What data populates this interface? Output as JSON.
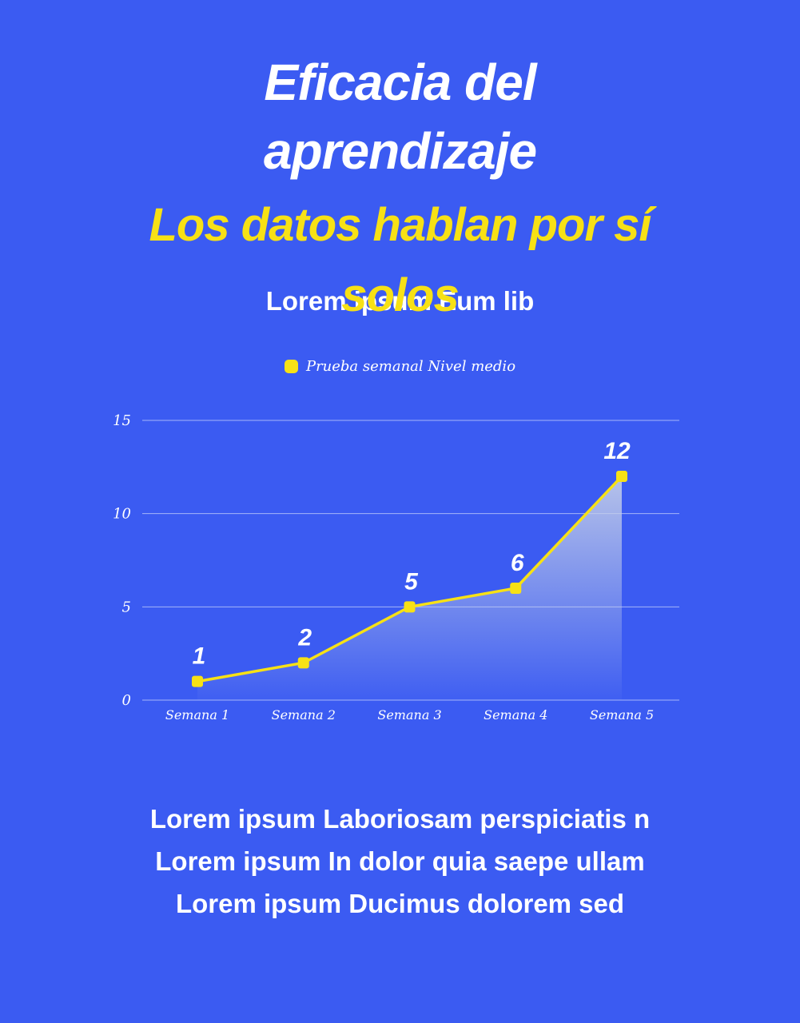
{
  "page": {
    "background_color": "#3B5BF2",
    "accent_yellow": "#F7E115",
    "text_color": "#FFFFFF"
  },
  "header": {
    "title": "Eficacia del aprendizaje",
    "subtitle": "Los datos hablan por sí solos",
    "tagline": "Lorem ipsum Eum lib"
  },
  "legend": {
    "label": "Prueba semanal Nivel medio",
    "swatch_color": "#F7E115"
  },
  "chart_data": {
    "type": "line",
    "title": "",
    "series_name": "Prueba semanal Nivel medio",
    "categories": [
      "Semana 1",
      "Semana 2",
      "Semana 3",
      "Semana 4",
      "Semana 5"
    ],
    "values": [
      1,
      2,
      5,
      6,
      12
    ],
    "data_labels": [
      "1",
      "2",
      "5",
      "6",
      "12"
    ],
    "yticks": [
      0,
      5,
      10,
      15
    ],
    "ylim": [
      0,
      15
    ],
    "grid": true,
    "legend_position": "top",
    "line_color": "#F7E115",
    "marker": "square",
    "marker_color": "#F7E115",
    "area_fill": true,
    "area_color": "#C4CEE8",
    "gridline_color": "rgba(255,255,255,0.55)"
  },
  "footer": {
    "lines": [
      "Lorem ipsum Laboriosam perspiciatis n",
      "Lorem ipsum In dolor quia saepe ullam",
      "Lorem ipsum Ducimus dolorem sed"
    ]
  }
}
